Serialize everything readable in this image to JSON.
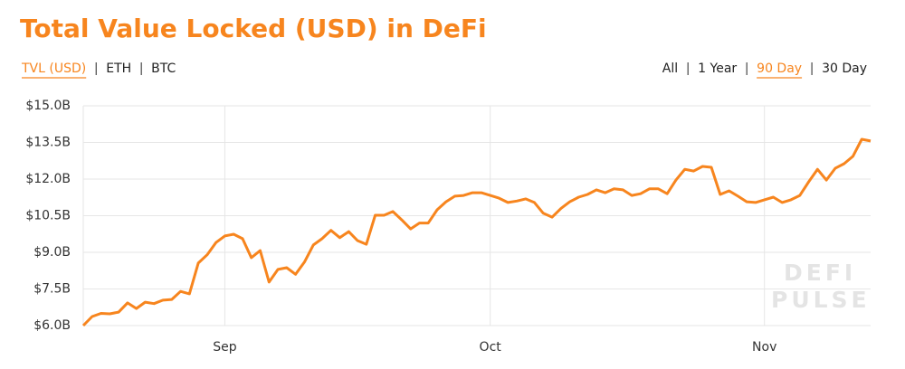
{
  "chart_data": {
    "type": "line",
    "title": "Total Value Locked (USD) in DeFi",
    "categories": [
      null,
      null,
      null,
      null,
      null,
      null,
      null,
      null,
      null,
      null,
      null,
      null,
      null,
      null,
      null,
      null,
      "Sep",
      null,
      null,
      null,
      null,
      null,
      null,
      null,
      null,
      null,
      null,
      null,
      null,
      null,
      null,
      null,
      null,
      null,
      null,
      null,
      null,
      null,
      null,
      null,
      null,
      null,
      null,
      null,
      null,
      null,
      "Oct",
      null,
      null,
      null,
      null,
      null,
      null,
      null,
      null,
      null,
      null,
      null,
      null,
      null,
      null,
      null,
      null,
      null,
      null,
      null,
      null,
      null,
      null,
      null,
      null,
      null,
      null,
      null,
      null,
      null,
      null,
      "Nov",
      null,
      null,
      null,
      null,
      null,
      null,
      null,
      null,
      null,
      null,
      null,
      null
    ],
    "series": [
      {
        "name": "TVL (USD)",
        "color": "#f7851e",
        "values": [
          6.0,
          6.37,
          6.5,
          6.48,
          6.55,
          6.93,
          6.7,
          6.96,
          6.9,
          7.04,
          7.07,
          7.4,
          7.3,
          8.56,
          8.9,
          9.4,
          9.67,
          9.74,
          9.56,
          8.78,
          9.07,
          7.78,
          8.3,
          8.37,
          8.1,
          8.6,
          9.3,
          9.56,
          9.9,
          9.6,
          9.85,
          9.48,
          9.33,
          10.52,
          10.52,
          10.67,
          10.33,
          9.96,
          10.2,
          10.2,
          10.74,
          11.07,
          11.3,
          11.33,
          11.44,
          11.44,
          11.33,
          11.22,
          11.04,
          11.1,
          11.19,
          11.04,
          10.6,
          10.44,
          10.8,
          11.07,
          11.26,
          11.37,
          11.56,
          11.44,
          11.6,
          11.56,
          11.33,
          11.4,
          11.6,
          11.6,
          11.4,
          11.96,
          12.4,
          12.33,
          12.52,
          12.48,
          11.37,
          11.52,
          11.3,
          11.07,
          11.04,
          11.15,
          11.26,
          11.04,
          11.15,
          11.33,
          11.89,
          12.4,
          11.96,
          12.44,
          12.63,
          12.93,
          13.63,
          13.56
        ]
      }
    ],
    "ylim": [
      6,
      15
    ],
    "yticks": [
      {
        "value": 6,
        "label": "$6.0B"
      },
      {
        "value": 7.5,
        "label": "$7.5B"
      },
      {
        "value": 9,
        "label": "$9.0B"
      },
      {
        "value": 10.5,
        "label": "$10.5B"
      },
      {
        "value": 12,
        "label": "$12.0B"
      },
      {
        "value": 13.5,
        "label": "$13.5B"
      },
      {
        "value": 15,
        "label": "$15.0B"
      }
    ],
    "grid": true,
    "watermark": [
      "DEFI",
      "PULSE"
    ]
  },
  "controls": {
    "series_options": [
      "TVL (USD)",
      "ETH",
      "BTC"
    ],
    "active_series_option": 0,
    "range_options": [
      "All",
      "1 Year",
      "90 Day",
      "30 Day"
    ],
    "active_range_option": 2
  }
}
